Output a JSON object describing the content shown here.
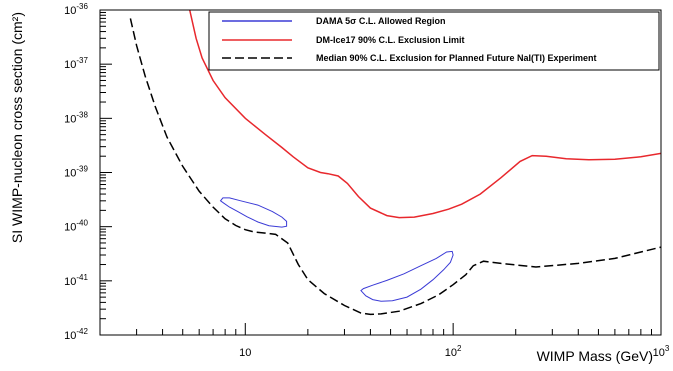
{
  "chart_data": {
    "type": "line",
    "title": "",
    "xlabel": "WIMP Mass (GeV)",
    "ylabel": "SI WIMP-nucleon cross section (cm²)",
    "xscale": "log",
    "yscale": "log",
    "xlim": [
      2,
      1000
    ],
    "ylim": [
      1e-42,
      1e-36
    ],
    "x_ticks": [
      {
        "value": 10,
        "base": "10",
        "exp": ""
      },
      {
        "value": 100,
        "base": "10",
        "exp": "2"
      },
      {
        "value": 1000,
        "base": "10",
        "exp": "3"
      }
    ],
    "y_ticks": [
      {
        "value": 1e-42,
        "base": "10",
        "exp": "-42"
      },
      {
        "value": 1e-41,
        "base": "10",
        "exp": "-41"
      },
      {
        "value": 1e-40,
        "base": "10",
        "exp": "-40"
      },
      {
        "value": 1e-39,
        "base": "10",
        "exp": "-39"
      },
      {
        "value": 1e-38,
        "base": "10",
        "exp": "-38"
      },
      {
        "value": 1e-37,
        "base": "10",
        "exp": "-37"
      },
      {
        "value": 1e-36,
        "base": "10",
        "exp": "-36"
      }
    ],
    "grid": false,
    "legend_position": "top-right",
    "series": [
      {
        "name": "DAMA 5σ C.L. Allowed Region",
        "color": "#3b3bd6",
        "style": "solid",
        "closed": true,
        "segments": [
          {
            "x": [
              7.6,
              7.8,
              8.4,
              9.5,
              11.5,
              13.5,
              15.0,
              15.8,
              15.8,
              15.0,
              13.0,
              11.5,
              10.2,
              9.2,
              8.4,
              7.9,
              7.6
            ],
            "y": [
              3e-40,
              3.4e-40,
              3.4e-40,
              3e-40,
              2.5e-40,
              1.9e-40,
              1.5e-40,
              1.25e-40,
              1.02e-40,
              9.8e-41,
              1.04e-40,
              1.22e-40,
              1.52e-40,
              1.9e-40,
              2.3e-40,
              2.7e-40,
              3e-40
            ]
          },
          {
            "x": [
              36,
              37,
              41,
              48,
              58,
              70,
              83,
              93,
              99,
              100,
              97,
              90,
              80,
              70,
              60,
              51,
              45,
              41,
              38,
              36
            ],
            "y": [
              6.6e-42,
              7.2e-42,
              8.3e-42,
              1.02e-41,
              1.35e-41,
              1.9e-41,
              2.6e-41,
              3.4e-41,
              3.5e-41,
              3e-41,
              2.2e-41,
              1.6e-41,
              1.05e-41,
              7e-42,
              5e-42,
              4.3e-42,
              4.2e-42,
              4.5e-42,
              5.3e-42,
              6.6e-42
            ]
          }
        ]
      },
      {
        "name": "DM-Ice17 90% C.L. Exclusion Limit",
        "color": "#e8282d",
        "style": "solid",
        "x": [
          5.4,
          5.8,
          6.2,
          7,
          8,
          10,
          12.5,
          15,
          17,
          20,
          23,
          25,
          28,
          31,
          35,
          40,
          48,
          55,
          65,
          80,
          95,
          110,
          135,
          170,
          210,
          240,
          280,
          350,
          450,
          600,
          800,
          1000
        ],
        "y": [
          1e-36,
          3e-37,
          1.3e-37,
          5e-38,
          2.4e-38,
          1e-38,
          5e-39,
          2.9e-39,
          1.95e-39,
          1.22e-39,
          1e-39,
          9.5e-40,
          8.6e-40,
          6.3e-40,
          3.6e-40,
          2.2e-40,
          1.6e-40,
          1.47e-40,
          1.5e-40,
          1.75e-40,
          2.1e-40,
          2.6e-40,
          4e-40,
          8e-40,
          1.6e-39,
          2.05e-39,
          2e-39,
          1.8e-39,
          1.72e-39,
          1.75e-39,
          1.95e-39,
          2.25e-39
        ]
      },
      {
        "name": "Median 90% C.L. Exclusion for Planned Future NaI(Tl) Experiment",
        "color": "#000000",
        "style": "dashed",
        "x": [
          2.8,
          3.0,
          3.3,
          3.7,
          4.2,
          5.0,
          6.0,
          7.0,
          8.0,
          9.0,
          10.0,
          11.0,
          12.5,
          14.0,
          16.0,
          18.0,
          20.0,
          24.0,
          30.0,
          36.0,
          40.0,
          45.0,
          55.0,
          70.0,
          85.0,
          100.0,
          115.0,
          125.0,
          140.0,
          170.0,
          250.0,
          400.0,
          600.0,
          800.0,
          1000.0
        ],
        "y": [
          7e-37,
          2.2e-37,
          6e-38,
          1.6e-38,
          4.5e-39,
          1.3e-39,
          4.5e-40,
          2.3e-40,
          1.4e-40,
          1.05e-40,
          8.8e-41,
          8e-41,
          7.6e-41,
          7.2e-41,
          5e-41,
          2e-41,
          1.05e-41,
          5.8e-42,
          3.5e-42,
          2.55e-42,
          2.4e-42,
          2.45e-42,
          2.75e-42,
          3.8e-42,
          5.5e-42,
          8.5e-42,
          1.3e-41,
          1.9e-41,
          2.3e-41,
          2.1e-41,
          1.8e-41,
          2.1e-41,
          2.6e-41,
          3.4e-41,
          4.2e-41
        ]
      }
    ]
  }
}
